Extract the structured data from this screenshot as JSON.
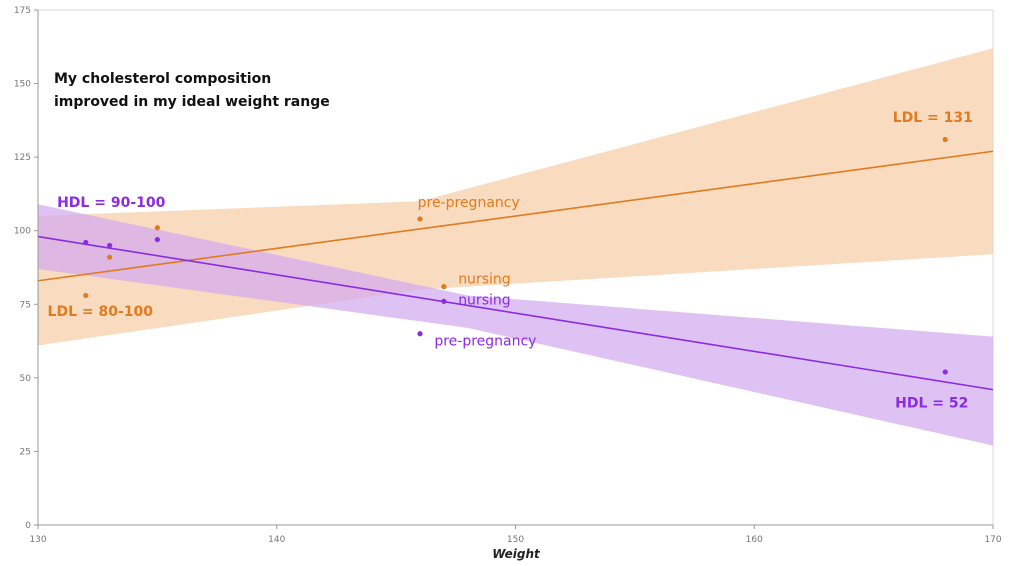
{
  "chart_data": {
    "type": "scatter",
    "title_lines": [
      "My cholesterol composition",
      "improved in my ideal weight range"
    ],
    "xlabel": "Weight",
    "ylabel": "",
    "xlim": [
      130,
      170
    ],
    "ylim": [
      0,
      175
    ],
    "x_ticks": [
      130,
      140,
      150,
      160,
      170
    ],
    "y_ticks": [
      0,
      25,
      50,
      75,
      100,
      125,
      150,
      175
    ],
    "grid": false,
    "colors": {
      "ldl": "#e07b1f",
      "ldl_band": "#f6cda6",
      "hdl": "#8b2be2",
      "hdl_band": "#d2aaf0"
    },
    "series": [
      {
        "key": "ldl",
        "points": [
          {
            "x": 132,
            "y": 78
          },
          {
            "x": 133,
            "y": 91
          },
          {
            "x": 135,
            "y": 101
          },
          {
            "x": 146,
            "y": 104
          },
          {
            "x": 147,
            "y": 81
          },
          {
            "x": 168,
            "y": 131
          }
        ],
        "trend": {
          "x": [
            130,
            170
          ],
          "y": [
            83,
            127
          ]
        },
        "band_upper": [
          {
            "x": 130,
            "y": 105
          },
          {
            "x": 146,
            "y": 110
          },
          {
            "x": 170,
            "y": 162
          }
        ],
        "band_lower": [
          {
            "x": 130,
            "y": 61
          },
          {
            "x": 146,
            "y": 80
          },
          {
            "x": 170,
            "y": 92
          }
        ]
      },
      {
        "key": "hdl",
        "points": [
          {
            "x": 132,
            "y": 96
          },
          {
            "x": 133,
            "y": 95
          },
          {
            "x": 135,
            "y": 97
          },
          {
            "x": 146,
            "y": 65
          },
          {
            "x": 147,
            "y": 76
          },
          {
            "x": 168,
            "y": 52
          }
        ],
        "trend": {
          "x": [
            130,
            170
          ],
          "y": [
            98,
            46
          ]
        },
        "band_upper": [
          {
            "x": 130,
            "y": 109
          },
          {
            "x": 148,
            "y": 78
          },
          {
            "x": 170,
            "y": 64
          }
        ],
        "band_lower": [
          {
            "x": 130,
            "y": 87
          },
          {
            "x": 148,
            "y": 67
          },
          {
            "x": 170,
            "y": 27
          }
        ]
      }
    ],
    "annotations": [
      {
        "text": "LDL = 131",
        "x": 165.8,
        "y": 137,
        "series": "ldl",
        "bold": true
      },
      {
        "text": "LDL = 80-100",
        "x": 130.4,
        "y": 71,
        "series": "ldl",
        "bold": true
      },
      {
        "text": "HDL = 90-100",
        "x": 130.8,
        "y": 108,
        "series": "hdl",
        "bold": true
      },
      {
        "text": "HDL = 52",
        "x": 165.9,
        "y": 40,
        "series": "hdl",
        "bold": true
      },
      {
        "text": "pre-pregnancy",
        "x": 145.9,
        "y": 108,
        "series": "ldl",
        "bold": false
      },
      {
        "text": "nursing",
        "x": 147.6,
        "y": 82,
        "series": "ldl",
        "bold": false
      },
      {
        "text": "nursing",
        "x": 147.6,
        "y": 75,
        "series": "hdl",
        "bold": false
      },
      {
        "text": "pre-pregnancy",
        "x": 146.6,
        "y": 61,
        "series": "hdl",
        "bold": false
      }
    ]
  }
}
